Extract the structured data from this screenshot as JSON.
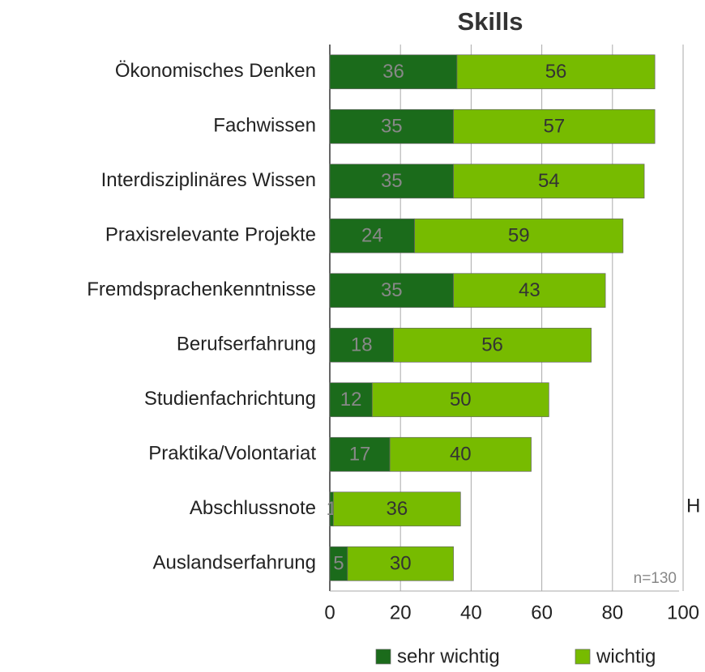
{
  "chart_data": {
    "type": "stacked_barh",
    "title": "Skills",
    "categories": [
      "Ökonomisches Denken",
      "Fachwissen",
      "Interdisziplinäres Wissen",
      "Praxisrelevante Projekte",
      "Fremdsprachenkenntnisse",
      "Berufserfahrung",
      "Studienfachrichtung",
      "Praktika/Volontariat",
      "Abschlussnote",
      "Auslandserfahrung"
    ],
    "series": [
      {
        "name": "sehr wichtig",
        "color": "#1b6b1b",
        "values": [
          36,
          35,
          35,
          24,
          35,
          18,
          12,
          17,
          1,
          5
        ]
      },
      {
        "name": "wichtig",
        "color": "#77bb00",
        "values": [
          56,
          57,
          54,
          59,
          43,
          56,
          50,
          40,
          36,
          30
        ]
      }
    ],
    "xlim": [
      0,
      100
    ],
    "xticks": [
      0,
      20,
      40,
      60,
      80,
      100
    ],
    "grid": true,
    "annotations": [
      "n=130",
      "H"
    ]
  }
}
